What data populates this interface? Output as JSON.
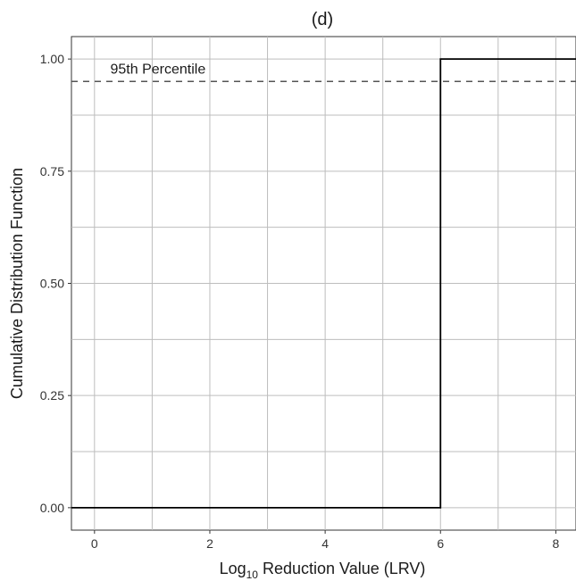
{
  "chart_data": {
    "type": "line",
    "title": "(d)",
    "xlabel": {
      "prefix": "Log",
      "subscript": "10",
      "suffix": " Reduction Value (LRV)"
    },
    "ylabel": "Cumulative Distribution Function",
    "xlim": [
      -0.4,
      8.35
    ],
    "ylim": [
      -0.05,
      1.05
    ],
    "x_ticks": [
      0,
      2,
      4,
      6,
      8
    ],
    "x_tick_labels": [
      "0",
      "2",
      "4",
      "6",
      "8"
    ],
    "y_ticks": [
      0,
      0.25,
      0.5,
      0.75,
      1.0
    ],
    "y_tick_labels": [
      "0.00",
      "0.25",
      "0.50",
      "0.75",
      "1.00"
    ],
    "grid": true,
    "series": [
      {
        "style": "step",
        "color": "#000000",
        "x": [
          -0.4,
          6,
          6,
          8.35
        ],
        "y": [
          0,
          0,
          1,
          1
        ]
      }
    ],
    "reference_lines": [
      {
        "orientation": "horizontal",
        "y": 0.95,
        "style": "dashed",
        "color": "#555555",
        "label": "95th Percentile",
        "label_x": 1.1
      }
    ]
  }
}
